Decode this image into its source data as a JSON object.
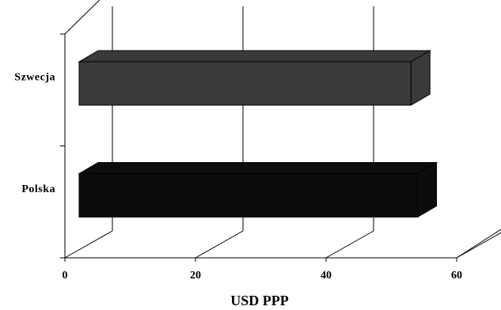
{
  "chart_data": {
    "type": "bar",
    "orientation": "horizontal",
    "style": "3d",
    "categories": [
      "Szwecja",
      "Polska"
    ],
    "values": [
      53,
      54
    ],
    "colors": [
      "#3a3a3a",
      "#0c0c0c"
    ],
    "xlabel": "USD PPP",
    "ylabel": "",
    "xlim": [
      0,
      60
    ],
    "xticks": [
      "0",
      "20",
      "40",
      "60"
    ],
    "grid": true,
    "legend": "none"
  }
}
